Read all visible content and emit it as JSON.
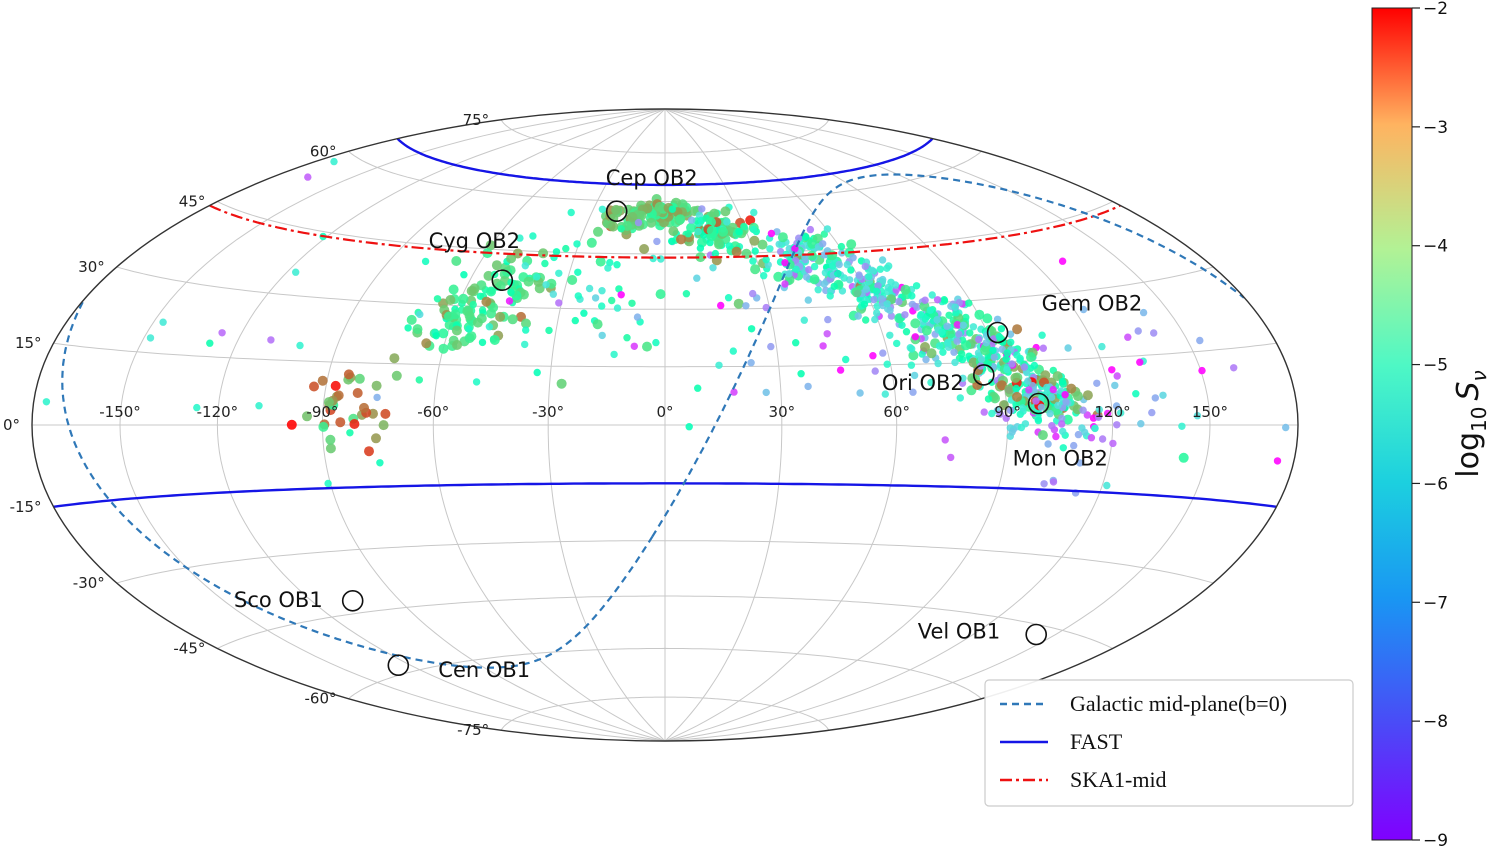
{
  "chart_data": {
    "type": "scatter",
    "projection": "aitoff-hammer (equatorial sky map)",
    "lon_ticks": [
      "-150°",
      "-120°",
      "-90°",
      "-60°",
      "-30°",
      "0°",
      "30°",
      "60°",
      "90°",
      "120°",
      "150°"
    ],
    "lat_ticks": [
      "75°",
      "60°",
      "45°",
      "30°",
      "15°",
      "0°",
      "-15°",
      "-30°",
      "-45°",
      "-60°",
      "-75°"
    ],
    "grid": true,
    "colorbar": {
      "label_base": "log",
      "label_sub": "10",
      "label_var": "S",
      "label_var_sub": "ν",
      "ticks": [
        "−2",
        "−3",
        "−4",
        "−5",
        "−6",
        "−7",
        "−8",
        "−9"
      ],
      "range": [
        -9,
        -2
      ],
      "colormap": "rainbow"
    },
    "associations": [
      {
        "name": "Cep OB2",
        "lon": -20,
        "lat": 57
      },
      {
        "name": "Cyg OB2",
        "lon": -50,
        "lat": 37
      },
      {
        "name": "Gem OB2",
        "lon": 93,
        "lat": 22
      },
      {
        "name": "Ori OB2",
        "lon": 85,
        "lat": 12
      },
      {
        "name": "Mon OB2",
        "lon": 99,
        "lat": 5
      },
      {
        "name": "Sco OB1",
        "lon": -106,
        "lat": -42
      },
      {
        "name": "Cen OB1",
        "lon": -125,
        "lat": -58
      },
      {
        "name": "Vel OB1",
        "lon": 143,
        "lat": -47
      }
    ],
    "legend": {
      "placement": "bottom-right",
      "entries": [
        {
          "label": "Galactic mid-plane(b=0)",
          "style": "dashed",
          "color": "#2f78b8"
        },
        {
          "label": "FAST",
          "style": "solid",
          "color": "#1515e6"
        },
        {
          "label": "SKA1-mid",
          "style": "dashdot",
          "color": "#ee1111"
        }
      ]
    },
    "lines": {
      "FAST_dec_limits": [
        65,
        -15
      ],
      "SKA1_mid_dec_limit": 44
    },
    "point_clusters": [
      {
        "lon": 0,
        "lat": 57,
        "sd_lon": 6,
        "sd_lat": 1.5,
        "n": 60,
        "logS_mean": -4.3,
        "logS_sd": 0.5
      },
      {
        "lon": -15,
        "lat": 55,
        "sd_lon": 5,
        "sd_lat": 2,
        "n": 40,
        "logS_mean": -4.0,
        "logS_sd": 0.5
      },
      {
        "lon": 20,
        "lat": 51,
        "sd_lon": 8,
        "sd_lat": 3,
        "n": 110,
        "logS_mean": -5.0,
        "logS_sd": 1.0
      },
      {
        "lon": 45,
        "lat": 43,
        "sd_lon": 8,
        "sd_lat": 4,
        "n": 130,
        "logS_mean": -6.2,
        "logS_sd": 1.1
      },
      {
        "lon": 62,
        "lat": 34,
        "sd_lon": 6,
        "sd_lat": 4,
        "n": 120,
        "logS_mean": -6.6,
        "logS_sd": 1.1
      },
      {
        "lon": 78,
        "lat": 25,
        "sd_lon": 6,
        "sd_lat": 4,
        "n": 120,
        "logS_mean": -6.3,
        "logS_sd": 1.2
      },
      {
        "lon": 90,
        "lat": 16,
        "sd_lon": 6,
        "sd_lat": 4,
        "n": 130,
        "logS_mean": -5.9,
        "logS_sd": 1.3
      },
      {
        "lon": 100,
        "lat": 6,
        "sd_lon": 6,
        "sd_lat": 3.5,
        "n": 130,
        "logS_mean": -5.5,
        "logS_sd": 1.4
      },
      {
        "lon": 110,
        "lat": 0,
        "sd_lon": 14,
        "sd_lat": 6,
        "n": 60,
        "logS_mean": -7.5,
        "logS_sd": 1.1
      },
      {
        "lon": -50,
        "lat": 35,
        "sd_lon": 6,
        "sd_lat": 5,
        "n": 70,
        "logS_mean": -4.5,
        "logS_sd": 0.6
      },
      {
        "lon": -60,
        "lat": 24,
        "sd_lon": 5,
        "sd_lat": 5,
        "n": 45,
        "logS_mean": -4.8,
        "logS_sd": 0.7
      },
      {
        "lon": -85,
        "lat": 4,
        "sd_lon": 7,
        "sd_lat": 4,
        "n": 35,
        "logS_mean": -3.8,
        "logS_sd": 0.8
      },
      {
        "lon": -25,
        "lat": 35,
        "sd_lon": 15,
        "sd_lat": 10,
        "n": 60,
        "logS_mean": -5.8,
        "logS_sd": 0.9
      },
      {
        "lon": 40,
        "lat": 25,
        "sd_lon": 30,
        "sd_lat": 15,
        "n": 60,
        "logS_mean": -6.8,
        "logS_sd": 1.3
      },
      {
        "lon": -110,
        "lat": 15,
        "sd_lon": 30,
        "sd_lat": 20,
        "n": 20,
        "logS_mean": -6.0,
        "logS_sd": 1.2
      },
      {
        "lon": 140,
        "lat": 10,
        "sd_lon": 20,
        "sd_lat": 15,
        "n": 25,
        "logS_mean": -7.8,
        "logS_sd": 1.0
      }
    ]
  }
}
